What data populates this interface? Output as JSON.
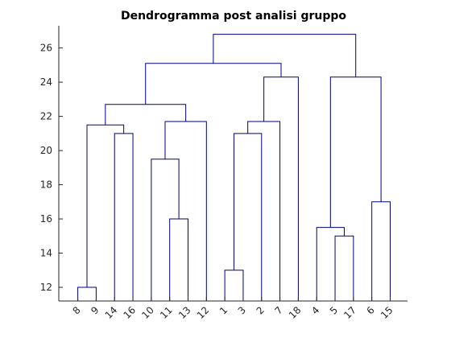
{
  "chart_data": {
    "type": "dendrogram",
    "title": "Dendrogramma post analisi gruppo",
    "xlabel": "",
    "ylabel": "",
    "ylim": [
      11.2,
      27.3
    ],
    "yticks": [
      12,
      14,
      16,
      18,
      20,
      22,
      24,
      26
    ],
    "leaf_order": [
      "8",
      "9",
      "14",
      "16",
      "10",
      "11",
      "13",
      "12",
      "1",
      "3",
      "2",
      "7",
      "18",
      "4",
      "5",
      "17",
      "6",
      "15"
    ],
    "merges": [
      {
        "left": "8",
        "right": "9",
        "height": 12.0
      },
      {
        "left": "1",
        "right": "3",
        "height": 13.0
      },
      {
        "left": "5",
        "right": "17",
        "height": 15.0
      },
      {
        "left": "4",
        "right": "(5,17)",
        "height": 15.5
      },
      {
        "left": "11",
        "right": "13",
        "height": 16.0
      },
      {
        "left": "6",
        "right": "15",
        "height": 17.0
      },
      {
        "left": "10",
        "right": "(11,13)",
        "height": 19.5
      },
      {
        "left": "14",
        "right": "16",
        "height": 21.0
      },
      {
        "left": "(1,3)",
        "right": "2",
        "height": 21.0
      },
      {
        "left": "(8,9)",
        "right": "(14,16)",
        "height": 21.5
      },
      {
        "left": "(10,11,13)",
        "right": "12",
        "height": 21.7
      },
      {
        "left": "(1,3,2)",
        "right": "7",
        "height": 21.7
      },
      {
        "left": "(8,9,14,16)",
        "right": "(10,11,13,12)",
        "height": 22.7
      },
      {
        "left": "(1,3,2,7)",
        "right": "18",
        "height": 24.3
      },
      {
        "left": "(4,5,17)",
        "right": "(6,15)",
        "height": 24.3
      },
      {
        "left": "(8,9,14,16,10,11,13,12)",
        "right": "(1,3,2,7,18)",
        "height": 25.1
      },
      {
        "left": "(all left)",
        "right": "(4,5,17,6,15)",
        "height": 26.8
      }
    ],
    "color": "#000080",
    "grid": false
  }
}
